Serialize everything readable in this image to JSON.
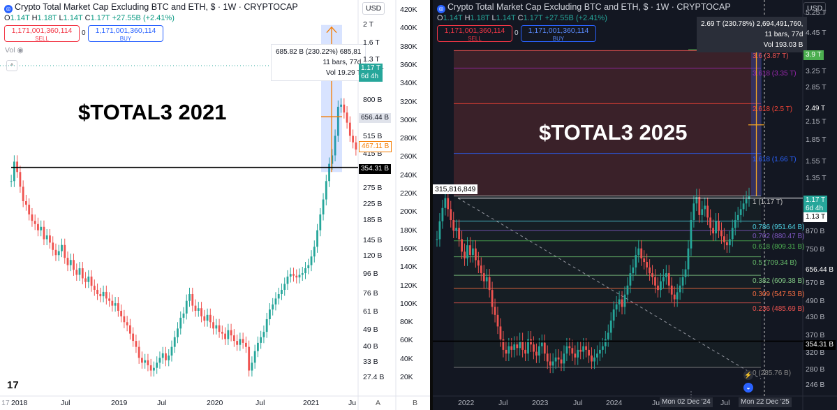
{
  "left": {
    "legend": {
      "title": "Crypto Total Market Cap Excluding BTC and ETH, $ · 1W · CRYPTOCAP",
      "o": "O",
      "o_val": "1.14T",
      "h": "H",
      "h_val": "1.18T",
      "l": "L",
      "l_val": "1.14T",
      "c": "C",
      "c_val": "1.17T",
      "change": "+27.55B (+2.41%)"
    },
    "sell": {
      "price": "1,171,001,360,114",
      "label": "SELL"
    },
    "spread": "0",
    "buy": {
      "price": "1,171,001,360,114",
      "label": "BUY"
    },
    "vol_label": "Vol",
    "collapse": "^",
    "currency": "USD",
    "annotation": "$TOTAL3 2021",
    "tooltip": [
      "685.82 B (230.22%) 685,81",
      "11 bars, 77d",
      "Vol 19.29 T"
    ],
    "price_axis": [
      "2 T",
      "1.6 T",
      "1.3 T",
      "1.13 T",
      "800 B",
      "515 B",
      "415 B",
      "335 B",
      "275 B",
      "225 B",
      "185 B",
      "145 B",
      "120 B",
      "96 B",
      "76 B",
      "61 B",
      "49 B",
      "40 B",
      "33 B",
      "27.4 B"
    ],
    "volume_axis": [
      "420K",
      "400K",
      "380K",
      "360K",
      "340K",
      "320K",
      "300K",
      "280K",
      "260K",
      "240K",
      "220K",
      "200K",
      "180K",
      "160K",
      "140K",
      "120K",
      "100K",
      "80K",
      "60K",
      "40K",
      "20K"
    ],
    "tags": {
      "current": "1.17 T",
      "countdown": "6d 4h",
      "high": "656.44 B",
      "low": "467.11 B",
      "level": "354.31 B"
    },
    "time_labels": [
      "2018",
      "Jul",
      "2019",
      "Jul",
      "2020",
      "Jul",
      "2021",
      "Ju"
    ],
    "first_label": "17",
    "scale_labels": [
      "A",
      "B"
    ],
    "logo_text": "17",
    "colors": {
      "up": "#26a69a",
      "down": "#ef5350",
      "level": "#000000",
      "measure": "#2962ff",
      "arrow": "#f57c00"
    }
  },
  "right": {
    "legend": {
      "title": "Crypto Total Market Cap Excluding BTC and ETH, $ · 1W · CRYPTOCAP",
      "o": "O",
      "o_val": "1.14T",
      "h": "H",
      "h_val": "1.18T",
      "l": "L",
      "l_val": "1.14T",
      "c": "C",
      "c_val": "1.17T",
      "change": "+27.55B (+2.41%)"
    },
    "sell": {
      "price": "1,171,001,360,114",
      "label": "SELL"
    },
    "spread": "0",
    "buy": {
      "price": "1,171,001,360,114",
      "label": "BUY"
    },
    "currency": "USD",
    "annotation": "$TOTAL3 2025",
    "tooltip": [
      "2.69 T (230.78%) 2,694,491,760,",
      "11 bars, 77d",
      "Vol 193.03 B"
    ],
    "price_label_left": "315,816,849",
    "price_axis": [
      "5.25 T",
      "4.45 T",
      "3.25 T",
      "2.85 T",
      "2.15 T",
      "1.85 T",
      "1.55 T",
      "1.35 T",
      "870 B",
      "750 B",
      "570 B",
      "490 B",
      "430 B",
      "370 B",
      "320 B",
      "280 B",
      "246 B"
    ],
    "tags": {
      "target": "3.9 T",
      "fib_2618": "2.49 T",
      "current": "1.17 T",
      "countdown": "6d 4h",
      "high": "1.13 T",
      "mid": "656.44 B",
      "level": "354.31 B"
    },
    "fib_labels": [
      "3.6 (3.87 T)",
      "3.618 (3.35 T)",
      "2.618 (2.5 T)",
      "1.618 (1.66 T)",
      "1 (1.17 T)",
      "0.786 (951.64 B)",
      "0.702 (880.47 B)",
      "0.618 (809.31 B)",
      "0.5 (709.34 B)",
      "0.382 (609.38 B)",
      "0.309 (547.53 B)",
      "0.236 (485.69 B)",
      "0 (285.76 B)"
    ],
    "time_labels": [
      "2022",
      "Jul",
      "2023",
      "Jul",
      "2024",
      "Ju",
      "Dec '24",
      "Jul",
      "Dec '25"
    ],
    "cursor_labels": [
      "Mon 02 Dec '24",
      "Mon 22 Dec '25"
    ],
    "colors": {
      "up": "#26a69a",
      "down": "#ef5350",
      "fib": [
        "#ef5350",
        "#9c27b0",
        "#f44336",
        "#2962ff",
        "#c0c0c0",
        "#4dd0e1",
        "#7e57c2",
        "#4caf50",
        "#66bb6a",
        "#81c784",
        "#ff7043",
        "#ef5350",
        "#888888"
      ]
    }
  },
  "chart_data": [
    {
      "type": "candlestick",
      "title": "Crypto Total Market Cap Excluding BTC and ETH, $ · 1W · CRYPTOCAP",
      "annotation": "$TOTAL3 2021",
      "x_ticks": [
        "2018",
        "Jul",
        "2019",
        "Jul",
        "2020",
        "Jul",
        "2021",
        "Ju"
      ],
      "y_scale": "log",
      "y_ticks": [
        "2 T",
        "1.6 T",
        "1.3 T",
        "1.13 T",
        "800 B",
        "515 B",
        "415 B",
        "335 B",
        "275 B",
        "225 B",
        "185 B",
        "145 B",
        "120 B",
        "96 B",
        "76 B",
        "61 B",
        "49 B",
        "40 B",
        "33 B",
        "27.4 B"
      ],
      "ylim_billions": [
        25,
        2100
      ],
      "horizontal_level_billions": 354.31,
      "series": [
        {
          "values_billions": [
            300,
            380,
            335,
            280,
            235,
            225,
            200,
            185,
            178,
            165,
            172,
            148,
            155,
            142,
            130,
            122,
            128,
            138,
            118,
            108,
            115,
            102,
            96,
            104,
            92,
            88,
            94,
            84,
            80,
            76,
            74,
            78,
            72,
            70,
            66,
            68,
            62,
            58,
            54,
            52,
            47,
            43,
            40,
            35,
            33,
            34,
            32,
            30,
            31,
            33,
            35,
            37,
            34,
            36,
            40,
            45,
            50,
            57,
            60,
            70,
            76,
            66,
            62,
            64,
            58,
            55,
            59,
            54,
            50,
            52,
            48,
            47,
            44,
            49,
            46,
            43,
            41,
            44,
            42,
            40,
            30,
            33,
            38,
            42,
            45,
            48,
            56,
            63,
            67,
            72,
            76,
            80,
            86,
            94,
            97,
            95,
            93,
            96,
            98,
            104,
            108,
            120,
            135,
            165,
            200,
            240,
            300,
            370,
            410,
            520,
            740,
            760,
            690,
            610,
            520,
            480,
            440
          ]
        }
      ]
    },
    {
      "type": "candlestick",
      "title": "Crypto Total Market Cap Excluding BTC and ETH, $ · 1W · CRYPTOCAP",
      "annotation": "$TOTAL3 2025",
      "x_ticks": [
        "2022",
        "Jul",
        "2023",
        "Jul",
        "2024",
        "Ju",
        "Dec '24",
        "Jul",
        "Dec '25"
      ],
      "y_scale": "log",
      "y_ticks": [
        "5.25 T",
        "4.45 T",
        "3.25 T",
        "2.85 T",
        "2.15 T",
        "1.85 T",
        "1.55 T",
        "1.35 T",
        "870 B",
        "750 B",
        "570 B",
        "490 B",
        "430 B",
        "370 B",
        "320 B",
        "280 B",
        "246 B"
      ],
      "ylim_billions": [
        235,
        5600
      ],
      "horizontal_level_billions": 354.31,
      "fibonacci": [
        {
          "ratio": 3.6,
          "value": "3.87 T"
        },
        {
          "ratio": 3.618,
          "value": "3.35 T"
        },
        {
          "ratio": 2.618,
          "value": "2.5 T"
        },
        {
          "ratio": 1.618,
          "value": "1.66 T"
        },
        {
          "ratio": 1,
          "value": "1.17 T"
        },
        {
          "ratio": 0.786,
          "value": "951.64 B"
        },
        {
          "ratio": 0.702,
          "value": "880.47 B"
        },
        {
          "ratio": 0.618,
          "value": "809.31 B"
        },
        {
          "ratio": 0.5,
          "value": "709.34 B"
        },
        {
          "ratio": 0.382,
          "value": "609.38 B"
        },
        {
          "ratio": 0.309,
          "value": "547.53 B"
        },
        {
          "ratio": 0.236,
          "value": "485.69 B"
        },
        {
          "ratio": 0,
          "value": "285.76 B"
        }
      ],
      "series": [
        {
          "values_billions": [
            820,
            950,
            1060,
            1150,
            1050,
            960,
            880,
            900,
            820,
            740,
            700,
            780,
            720,
            760,
            690,
            660,
            620,
            580,
            600,
            540,
            470,
            440,
            400,
            360,
            330,
            320,
            340,
            330,
            345,
            335,
            355,
            330,
            320,
            360,
            345,
            325,
            315,
            340,
            350,
            320,
            300,
            290,
            300,
            310,
            305,
            295,
            320,
            340,
            335,
            320,
            310,
            330,
            325,
            340,
            330,
            315,
            300,
            310,
            320,
            330,
            340,
            360,
            380,
            420,
            460,
            480,
            500,
            470,
            520,
            560,
            620,
            650,
            720,
            760,
            700,
            680,
            650,
            620,
            600,
            560,
            540,
            580,
            600,
            620,
            560,
            520,
            500,
            530,
            560,
            600,
            640,
            760,
            960,
            1100,
            1160,
            1000,
            1050,
            1080,
            980,
            900,
            860,
            950,
            880,
            840,
            800,
            780,
            820,
            900,
            960,
            1000,
            1050,
            1100,
            1140,
            1170
          ]
        }
      ]
    }
  ]
}
